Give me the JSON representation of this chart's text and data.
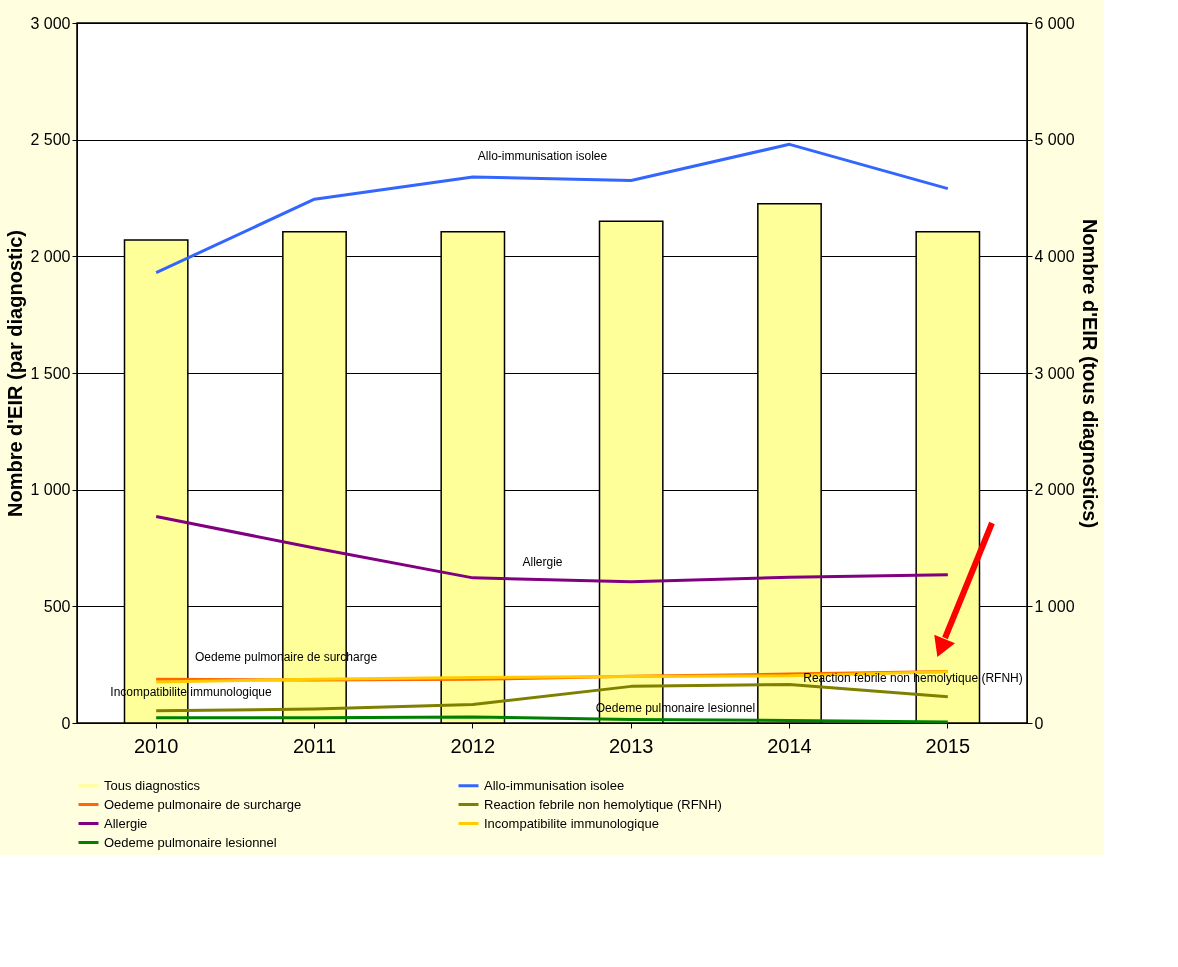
{
  "chart_data": {
    "type": "line",
    "categories": [
      "2010",
      "2011",
      "2012",
      "2013",
      "2014",
      "2015"
    ],
    "ylabel": "Nombre d'EIR (par diagnostic)",
    "y2label": "Nombre d'EIR (tous diagnostics)",
    "ylim": [
      0,
      3000
    ],
    "yticks": [
      0,
      500,
      {
        "value": 1000,
        "label": "1 000"
      },
      {
        "value": 1500,
        "label": "1 500"
      },
      {
        "value": 2000,
        "label": "2 000"
      },
      {
        "value": 2500,
        "label": "2 500"
      },
      {
        "value": 3000,
        "label": "3 000"
      }
    ],
    "y2lim": [
      0,
      6000
    ],
    "y2ticks": [
      0,
      {
        "value": 1000,
        "label": "1 000"
      },
      {
        "value": 2000,
        "label": "2 000"
      },
      {
        "value": 3000,
        "label": "3 000"
      },
      {
        "value": 4000,
        "label": "4 000"
      },
      {
        "value": 5000,
        "label": "5 000"
      },
      {
        "value": 6000,
        "label": "6 000"
      }
    ],
    "grid": "y",
    "legend": "bottom",
    "marker": "none",
    "line_style": "solid",
    "series": [
      {
        "name": "Tous diagnostics",
        "type": "bar",
        "axis": "y2",
        "color": "#ffff99",
        "values": [
          4140,
          4210,
          4210,
          4300,
          4450,
          4210
        ]
      },
      {
        "name": "Allo-immunisation isolee",
        "color": "#3366ff",
        "values": [
          1930,
          2245,
          2340,
          2325,
          2480,
          2290
        ]
      },
      {
        "name": "Oedeme pulmonaire de surcharge",
        "color": "#ff6600",
        "values": [
          187,
          184,
          187,
          200,
          210,
          221
        ]
      },
      {
        "name": "Reaction febrile non hemolytique (RFNH)",
        "color": "#808000",
        "values": [
          52,
          60,
          79,
          157,
          165,
          112
        ]
      },
      {
        "name": "Allergie",
        "color": "#800080",
        "values": [
          885,
          750,
          622,
          605,
          625,
          635
        ]
      },
      {
        "name": "Incompatibilite immunologique",
        "color": "#ffcc00",
        "values": [
          176,
          187,
          195,
          199,
          202,
          220
        ]
      },
      {
        "name": "Oedeme pulmonaire lesionnel",
        "color": "#008000",
        "values": [
          22,
          22,
          26,
          15,
          11,
          4
        ]
      }
    ],
    "annotations": [
      "Allo-immunisation isolee",
      "Allergie",
      "Oedeme pulmonaire de surcharge",
      "Incompatibilite immunologique",
      "Oedeme pulmonaire lesionnel",
      "Reaction febrile non hemolytique (RFNH)"
    ]
  }
}
